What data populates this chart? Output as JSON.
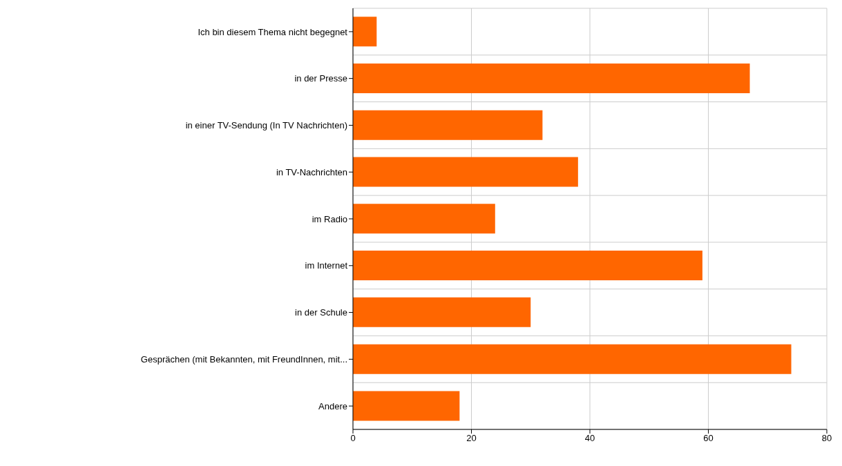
{
  "chart_data": {
    "type": "bar",
    "orientation": "horizontal",
    "categories": [
      "Ich bin diesem Thema nicht begegnet",
      "in der Presse",
      "in einer TV-Sendung (In TV Nachrichten)",
      "in TV-Nachrichten",
      "im Radio",
      "im Internet",
      "in der Schule",
      "Gesprächen (mit Bekannten, mit FreundInnen, mit...",
      "Andere"
    ],
    "values": [
      4,
      67,
      32,
      38,
      24,
      59,
      30,
      74,
      18
    ],
    "color": "#ff6600",
    "xlim": [
      0,
      80
    ],
    "xticks": [
      0,
      20,
      40,
      60,
      80
    ],
    "grid": true
  }
}
